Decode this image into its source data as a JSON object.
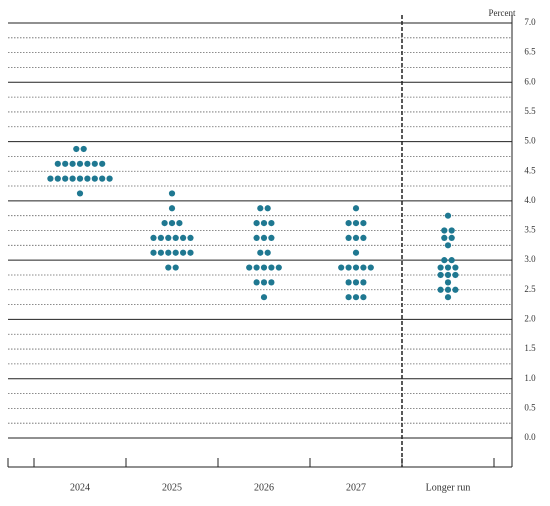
{
  "chart_data": {
    "type": "dot",
    "y_label": "Percent",
    "categories": [
      "2024",
      "2025",
      "2026",
      "2027",
      "Longer run"
    ],
    "color": "#1f7891",
    "values": [
      [
        4.875,
        4.875,
        4.625,
        4.625,
        4.625,
        4.625,
        4.625,
        4.625,
        4.625,
        4.375,
        4.375,
        4.375,
        4.375,
        4.375,
        4.375,
        4.375,
        4.375,
        4.375,
        4.125
      ],
      [
        4.125,
        3.875,
        3.625,
        3.625,
        3.625,
        3.375,
        3.375,
        3.375,
        3.375,
        3.375,
        3.375,
        3.125,
        3.125,
        3.125,
        3.125,
        3.125,
        3.125,
        2.875,
        2.875
      ],
      [
        3.875,
        3.875,
        3.625,
        3.625,
        3.625,
        3.375,
        3.375,
        3.375,
        3.125,
        3.125,
        2.875,
        2.875,
        2.875,
        2.875,
        2.875,
        2.625,
        2.625,
        2.625,
        2.375
      ],
      [
        3.875,
        3.625,
        3.625,
        3.625,
        3.375,
        3.375,
        3.375,
        3.125,
        2.875,
        2.875,
        2.875,
        2.875,
        2.875,
        2.625,
        2.625,
        2.625,
        2.375,
        2.375,
        2.375
      ],
      [
        3.75,
        3.5,
        3.5,
        3.375,
        3.375,
        3.25,
        3.0,
        3.0,
        2.875,
        2.875,
        2.875,
        2.75,
        2.75,
        2.75,
        2.625,
        2.5,
        2.5,
        2.5,
        2.375
      ]
    ],
    "ylim": [
      0,
      7
    ],
    "yticks": [
      {
        "value": 0,
        "label": "0.0"
      },
      0.5,
      {
        "value": 1,
        "label": "1.0"
      },
      1.5,
      {
        "value": 2,
        "label": "2.0"
      },
      2.5,
      {
        "value": 3,
        "label": "3.0"
      },
      3.5,
      {
        "value": 4,
        "label": "4.0"
      },
      4.5,
      {
        "value": 5,
        "label": "5.0"
      },
      5.5,
      {
        "value": 6,
        "label": "6.0"
      },
      6.5,
      {
        "value": 7,
        "label": "7.0"
      }
    ],
    "minor_yticks": [
      0.25,
      0.75,
      1.25,
      1.75,
      2.25,
      2.75,
      3.25,
      3.75,
      4.25,
      4.75,
      5.25,
      5.75,
      6.25,
      6.75
    ],
    "grid": true
  }
}
